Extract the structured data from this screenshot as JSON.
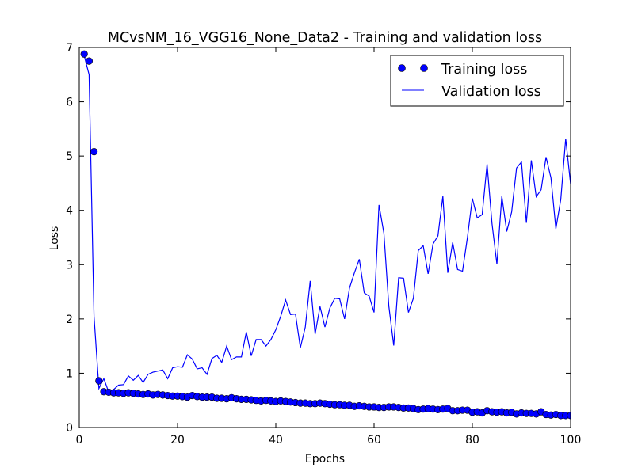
{
  "chart_data": {
    "type": "line",
    "title": "MCvsNM_16_VGG16_None_Data2 - Training and validation loss",
    "xlabel": "Epochs",
    "ylabel": "Loss",
    "xlim": [
      0,
      100
    ],
    "ylim": [
      0,
      7
    ],
    "xticks": [
      0,
      20,
      40,
      60,
      80,
      100
    ],
    "yticks": [
      0,
      1,
      2,
      3,
      4,
      5,
      6,
      7
    ],
    "grid": false,
    "legend_position": "upper right",
    "x": [
      1,
      2,
      3,
      4,
      5,
      6,
      7,
      8,
      9,
      10,
      11,
      12,
      13,
      14,
      15,
      16,
      17,
      18,
      19,
      20,
      21,
      22,
      23,
      24,
      25,
      26,
      27,
      28,
      29,
      30,
      31,
      32,
      33,
      34,
      35,
      36,
      37,
      38,
      39,
      40,
      41,
      42,
      43,
      44,
      45,
      46,
      47,
      48,
      49,
      50,
      51,
      52,
      53,
      54,
      55,
      56,
      57,
      58,
      59,
      60,
      61,
      62,
      63,
      64,
      65,
      66,
      67,
      68,
      69,
      70,
      71,
      72,
      73,
      74,
      75,
      76,
      77,
      78,
      79,
      80,
      81,
      82,
      83,
      84,
      85,
      86,
      87,
      88,
      89,
      90,
      91,
      92,
      93,
      94,
      95,
      96,
      97,
      98,
      99,
      100
    ],
    "series": [
      {
        "name": "Training loss",
        "style": "markers",
        "color": "#0000ff",
        "values": [
          6.88,
          6.75,
          5.08,
          0.86,
          0.66,
          0.65,
          0.64,
          0.64,
          0.63,
          0.64,
          0.63,
          0.62,
          0.61,
          0.62,
          0.6,
          0.61,
          0.6,
          0.59,
          0.58,
          0.58,
          0.57,
          0.56,
          0.59,
          0.57,
          0.56,
          0.56,
          0.56,
          0.54,
          0.54,
          0.53,
          0.55,
          0.53,
          0.52,
          0.52,
          0.51,
          0.5,
          0.49,
          0.5,
          0.49,
          0.48,
          0.49,
          0.48,
          0.47,
          0.46,
          0.45,
          0.45,
          0.44,
          0.44,
          0.45,
          0.44,
          0.43,
          0.42,
          0.42,
          0.41,
          0.41,
          0.39,
          0.4,
          0.39,
          0.38,
          0.38,
          0.37,
          0.37,
          0.38,
          0.38,
          0.37,
          0.36,
          0.36,
          0.35,
          0.33,
          0.34,
          0.35,
          0.34,
          0.33,
          0.34,
          0.35,
          0.31,
          0.31,
          0.32,
          0.32,
          0.28,
          0.29,
          0.27,
          0.31,
          0.29,
          0.28,
          0.29,
          0.27,
          0.28,
          0.25,
          0.27,
          0.26,
          0.26,
          0.25,
          0.29,
          0.24,
          0.23,
          0.24,
          0.22,
          0.22,
          0.22
        ]
      },
      {
        "name": "Validation loss",
        "style": "line",
        "color": "#0000ff",
        "values": [
          6.85,
          6.5,
          2.05,
          0.72,
          0.9,
          0.65,
          0.7,
          0.78,
          0.79,
          0.95,
          0.87,
          0.96,
          0.83,
          0.98,
          1.02,
          1.04,
          1.06,
          0.9,
          1.1,
          1.12,
          1.11,
          1.34,
          1.26,
          1.08,
          1.1,
          0.98,
          1.27,
          1.33,
          1.2,
          1.5,
          1.25,
          1.3,
          1.3,
          1.76,
          1.32,
          1.62,
          1.62,
          1.5,
          1.62,
          1.8,
          2.05,
          2.35,
          2.08,
          2.09,
          1.47,
          1.85,
          2.7,
          1.72,
          2.23,
          1.85,
          2.2,
          2.38,
          2.37,
          2.0,
          2.57,
          2.85,
          3.1,
          2.48,
          2.42,
          2.12,
          4.1,
          3.58,
          2.24,
          1.51,
          2.76,
          2.75,
          2.12,
          2.38,
          3.26,
          3.35,
          2.83,
          3.38,
          3.53,
          4.26,
          2.85,
          3.41,
          2.91,
          2.88,
          3.5,
          4.22,
          3.86,
          3.92,
          4.85,
          3.76,
          3.01,
          4.26,
          3.61,
          3.97,
          4.78,
          4.89,
          3.77,
          4.92,
          4.25,
          4.38,
          4.98,
          4.6,
          3.66,
          4.2,
          5.32,
          4.48
        ]
      }
    ]
  }
}
